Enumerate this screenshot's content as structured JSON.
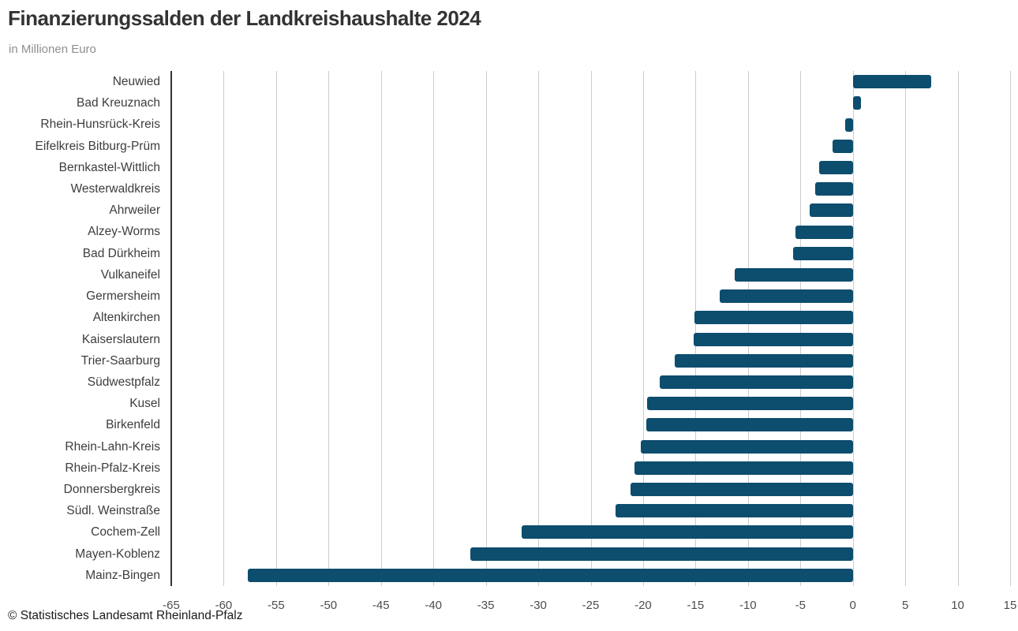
{
  "chart_data": {
    "type": "bar",
    "orientation": "horizontal",
    "title": "Finanzierungssalden der Landkreishaushalte 2024",
    "subtitle": "in Millionen Euro",
    "footer": "© Statistisches Landesamt Rheinland-Pfalz",
    "categories": [
      "Neuwied",
      "Bad Kreuznach",
      "Rhein-Hunsrück-Kreis",
      "Eifelkreis Bitburg-Prüm",
      "Bernkastel-Wittlich",
      "Westerwaldkreis",
      "Ahrweiler",
      "Alzey-Worms",
      "Bad Dürkheim",
      "Vulkaneifel",
      "Germersheim",
      "Altenkirchen",
      "Kaiserslautern",
      "Trier-Saarburg",
      "Südwestpfalz",
      "Kusel",
      "Birkenfeld",
      "Rhein-Lahn-Kreis",
      "Rhein-Pfalz-Kreis",
      "Donnersbergkreis",
      "Südl. Weinstraße",
      "Cochem-Zell",
      "Mayen-Koblenz",
      "Mainz-Bingen"
    ],
    "values": [
      7.5,
      0.8,
      -0.7,
      -1.9,
      -3.2,
      -3.6,
      -4.1,
      -5.5,
      -5.7,
      -11.3,
      -12.7,
      -15.1,
      -15.2,
      -17.0,
      -18.4,
      -19.6,
      -19.7,
      -20.2,
      -20.8,
      -21.2,
      -22.6,
      -31.6,
      -36.5,
      -57.7
    ],
    "xlabel": "",
    "ylabel": "",
    "xlim": [
      -65,
      15
    ],
    "xticks": [
      -65,
      -60,
      -55,
      -50,
      -45,
      -40,
      -35,
      -30,
      -25,
      -20,
      -15,
      -10,
      -5,
      0,
      5,
      10,
      15
    ],
    "grid": true,
    "legend": "none",
    "bar_color": "#0d4d6e",
    "grid_color": "#cccccc",
    "spine_color": "#333333"
  }
}
